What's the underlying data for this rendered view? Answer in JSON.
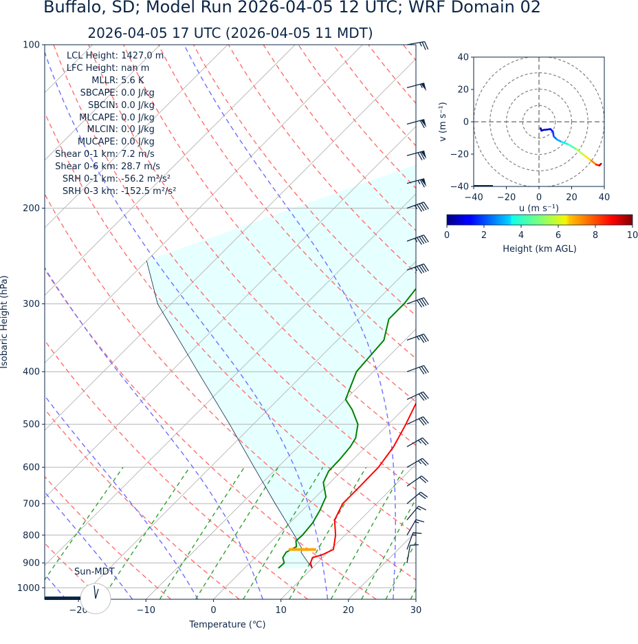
{
  "title": "Buffalo, SD; Model Run 2026-04-05 12 UTC; WRF Domain 02",
  "subtitle": "2026-04-05 17 UTC  (2026-04-05 11 MDT)",
  "colors": {
    "text": "#0b2545",
    "temperature": "#ff0000",
    "dewpoint": "#008000",
    "parcel": "#0b2545",
    "dry_adiabat": "#ff6e6e",
    "moist_adiabat": "#6e6eff",
    "mixing_ratio": "#2ca02c",
    "cape_fill": "#e6ffff",
    "lcl_marker": "#ffa500",
    "isotherm": "#b4b4b4"
  },
  "indices": [
    {
      "label": "LCL Height:",
      "value": "1427.0 m"
    },
    {
      "label": "LFC Height:",
      "value": "nan m"
    },
    {
      "label": "MLLR:",
      "value": "5.6 K"
    },
    {
      "label": "SBCAPE:",
      "value": "0.0 J/kg"
    },
    {
      "label": "SBCIN:",
      "value": "0.0 J/kg"
    },
    {
      "label": "MLCAPE:",
      "value": "0.0 J/kg"
    },
    {
      "label": "MLCIN:",
      "value": "0.0 J/kg"
    },
    {
      "label": "MUCAPE:",
      "value": "0.0 J/kg"
    },
    {
      "label": "Shear 0-1 km:",
      "value": "7.2 m/s"
    },
    {
      "label": "Shear 0-6 km:",
      "value": "28.7 m/s"
    },
    {
      "label": "SRH 0-1 km:",
      "value": "-56.2 m²/s²"
    },
    {
      "label": "SRH 0-3 km:",
      "value": "-152.5 m²/s²"
    }
  ],
  "sun_label": "Sun-MDT",
  "colorbar": {
    "label": "Height (km AGL)",
    "ticks": [
      "0",
      "2",
      "4",
      "6",
      "8",
      "10"
    ],
    "range": [
      0,
      10
    ]
  },
  "chart_data": [
    {
      "type": "line",
      "chart": "skew-T log-p sounding",
      "xlabel": "Temperature (℃)",
      "ylabel": "Isobaric Height (hPa)",
      "xlim": [
        -25,
        30
      ],
      "ylim": [
        1050,
        100
      ],
      "yscale": "log",
      "xticks": [
        "−20",
        "−10",
        "0",
        "10",
        "20",
        "30"
      ],
      "yticks": [
        1000,
        900,
        800,
        700,
        600,
        500,
        400,
        300,
        200,
        100
      ],
      "temperature": [
        [
          920,
          10.0
        ],
        [
          900,
          9.0
        ],
        [
          880,
          8.5
        ],
        [
          870,
          9.5
        ],
        [
          850,
          10.4
        ],
        [
          800,
          8.6
        ],
        [
          750,
          6.2
        ],
        [
          700,
          5.0
        ],
        [
          650,
          5.0
        ],
        [
          600,
          4.9
        ],
        [
          550,
          4.1
        ],
        [
          500,
          2.6
        ],
        [
          450,
          0.7
        ],
        [
          400,
          -1.4
        ],
        [
          350,
          -3.3
        ],
        [
          300,
          -4.7
        ],
        [
          250,
          -6.2
        ],
        [
          220,
          -5.3
        ],
        [
          185,
          0.6
        ],
        [
          165,
          10.7
        ],
        [
          140,
          17.3
        ],
        [
          120,
          20.0
        ],
        [
          100,
          25.0
        ]
      ],
      "dewpoint": [
        [
          920,
          5.0
        ],
        [
          900,
          5.1
        ],
        [
          880,
          4.1
        ],
        [
          860,
          3.8
        ],
        [
          840,
          4.5
        ],
        [
          820,
          3.6
        ],
        [
          800,
          3.7
        ],
        [
          760,
          3.4
        ],
        [
          720,
          2.6
        ],
        [
          680,
          1.5
        ],
        [
          640,
          -1.0
        ],
        [
          610,
          -1.9
        ],
        [
          580,
          -2.0
        ],
        [
          550,
          -2.3
        ],
        [
          530,
          -2.8
        ],
        [
          500,
          -4.5
        ],
        [
          470,
          -7.5
        ],
        [
          450,
          -10.0
        ],
        [
          400,
          -12.5
        ],
        [
          350,
          -13.1
        ],
        [
          320,
          -15.5
        ],
        [
          300,
          -15.5
        ],
        [
          280,
          -16.0
        ],
        [
          250,
          -14.5
        ],
        [
          200,
          -14.5
        ],
        [
          160,
          -14.5
        ],
        [
          145,
          -12.5
        ],
        [
          100,
          -2.5
        ]
      ],
      "parcel": [
        [
          920,
          10.0
        ],
        [
          860,
          6.0
        ],
        [
          850,
          5.8
        ],
        [
          800,
          2.5
        ],
        [
          700,
          -5.0
        ],
        [
          600,
          -13.5
        ],
        [
          500,
          -23.5
        ],
        [
          400,
          -36.0
        ],
        [
          300,
          -52.0
        ],
        [
          250,
          -60.0
        ]
      ],
      "lcl_pressure": 850,
      "wind_barbs": [
        {
          "p": 100,
          "speed_kt": 25,
          "dir": 260
        },
        {
          "p": 120,
          "speed_kt": 55,
          "dir": 255
        },
        {
          "p": 140,
          "speed_kt": 60,
          "dir": 255
        },
        {
          "p": 160,
          "speed_kt": 70,
          "dir": 255
        },
        {
          "p": 180,
          "speed_kt": 65,
          "dir": 255
        },
        {
          "p": 200,
          "speed_kt": 45,
          "dir": 250
        },
        {
          "p": 230,
          "speed_kt": 45,
          "dir": 250
        },
        {
          "p": 260,
          "speed_kt": 45,
          "dir": 250
        },
        {
          "p": 300,
          "speed_kt": 40,
          "dir": 250
        },
        {
          "p": 350,
          "speed_kt": 35,
          "dir": 250
        },
        {
          "p": 400,
          "speed_kt": 30,
          "dir": 250
        },
        {
          "p": 450,
          "speed_kt": 30,
          "dir": 245
        },
        {
          "p": 500,
          "speed_kt": 30,
          "dir": 245
        },
        {
          "p": 550,
          "speed_kt": 25,
          "dir": 240
        },
        {
          "p": 600,
          "speed_kt": 25,
          "dir": 240
        },
        {
          "p": 650,
          "speed_kt": 20,
          "dir": 235
        },
        {
          "p": 700,
          "speed_kt": 20,
          "dir": 230
        },
        {
          "p": 750,
          "speed_kt": 15,
          "dir": 220
        },
        {
          "p": 800,
          "speed_kt": 15,
          "dir": 210
        },
        {
          "p": 850,
          "speed_kt": 15,
          "dir": 200
        },
        {
          "p": 900,
          "speed_kt": 10,
          "dir": 190
        }
      ]
    },
    {
      "type": "line",
      "chart": "hodograph",
      "xlabel": "u (m s⁻¹)",
      "ylabel": "v (m s⁻¹)",
      "xlim": [
        -40,
        40
      ],
      "ylim": [
        -40,
        40
      ],
      "xticks": [
        "−40",
        "−20",
        "0",
        "20",
        "40"
      ],
      "yticks": [
        "40",
        "20",
        "0",
        "−20",
        "−40"
      ],
      "rings_ms": [
        10,
        20,
        30,
        40
      ],
      "wind_profile": [
        {
          "u": 1.0,
          "v": -4.0,
          "h": 0.0
        },
        {
          "u": 1.5,
          "v": -5.5,
          "h": 0.3
        },
        {
          "u": 3.0,
          "v": -5.0,
          "h": 0.6
        },
        {
          "u": 5.0,
          "v": -4.8,
          "h": 0.9
        },
        {
          "u": 7.0,
          "v": -4.5,
          "h": 1.2
        },
        {
          "u": 8.5,
          "v": -6.0,
          "h": 1.5
        },
        {
          "u": 9.0,
          "v": -9.0,
          "h": 2.0
        },
        {
          "u": 11.0,
          "v": -11.0,
          "h": 2.6
        },
        {
          "u": 14.0,
          "v": -12.5,
          "h": 3.3
        },
        {
          "u": 18.0,
          "v": -14.0,
          "h": 4.0
        },
        {
          "u": 23.0,
          "v": -17.0,
          "h": 5.0
        },
        {
          "u": 28.0,
          "v": -21.0,
          "h": 6.0
        },
        {
          "u": 32.0,
          "v": -24.0,
          "h": 7.0
        },
        {
          "u": 35.0,
          "v": -26.5,
          "h": 8.0
        },
        {
          "u": 37.0,
          "v": -27.0,
          "h": 9.0
        },
        {
          "u": 38.0,
          "v": -26.0,
          "h": 10.0
        }
      ]
    }
  ]
}
